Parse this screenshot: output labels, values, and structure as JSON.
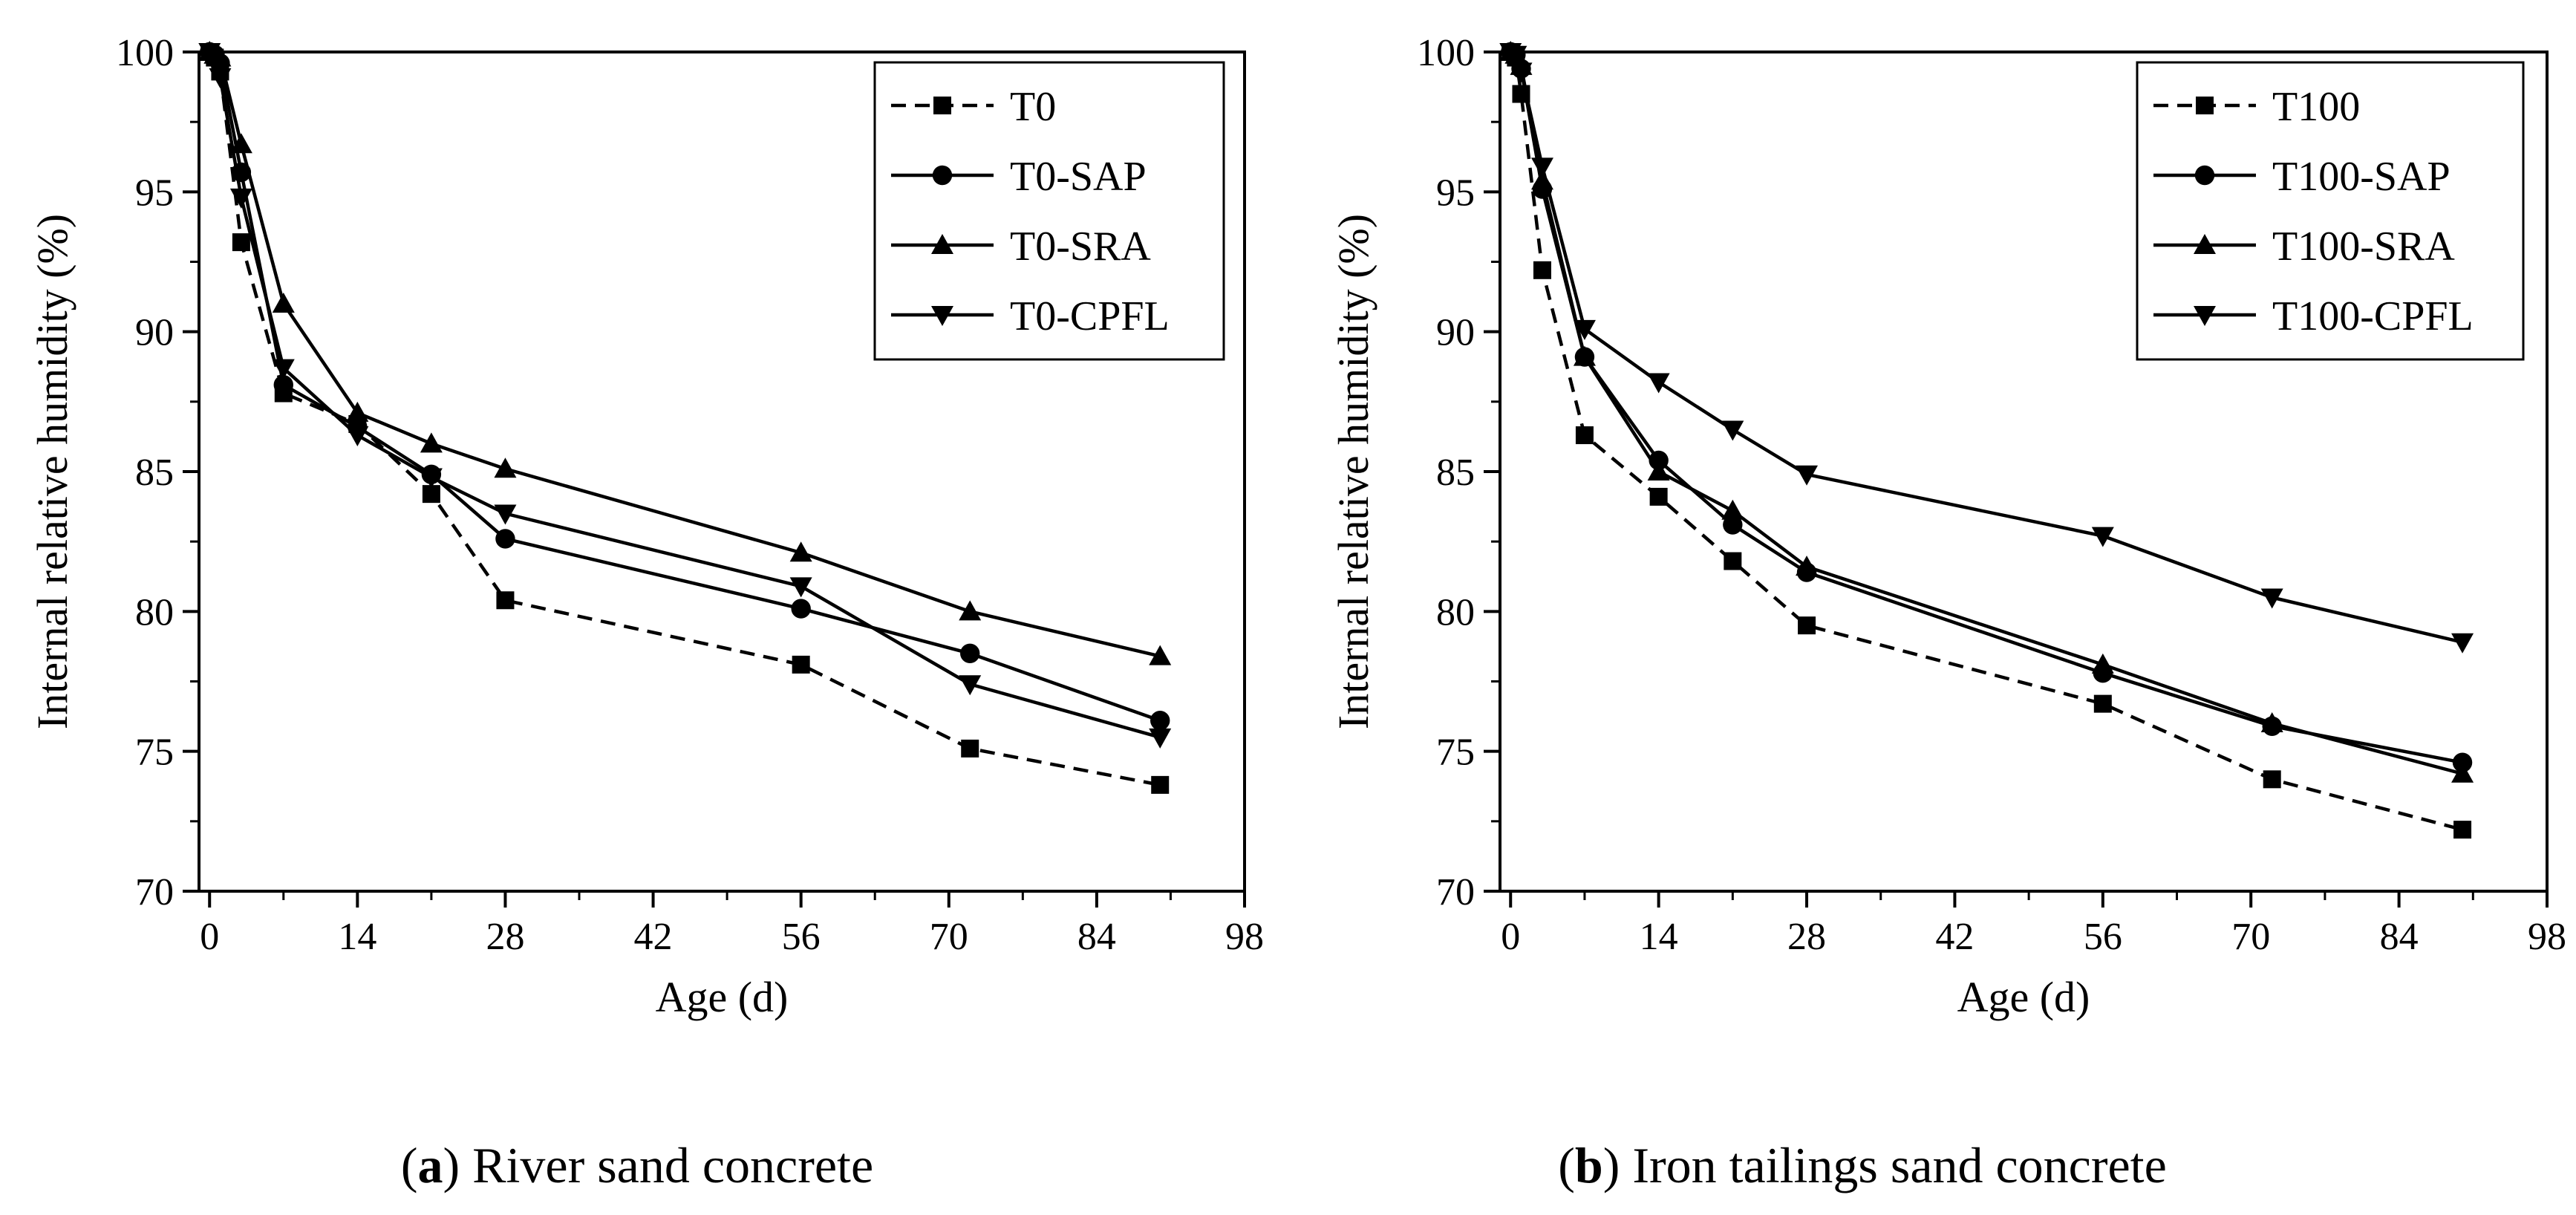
{
  "figure": {
    "captions": [
      {
        "prefix": "(",
        "letter": "a",
        "suffix": ") River sand concrete"
      },
      {
        "prefix": "(",
        "letter": "b",
        "suffix": ") Iron tailings sand concrete"
      }
    ]
  },
  "chart_data": [
    {
      "type": "line",
      "title": "",
      "xlabel": "Age (d)",
      "ylabel": "Internal relative humidity (%)",
      "xlim": [
        -1,
        98
      ],
      "ylim": [
        70,
        100
      ],
      "xticks": [
        0,
        14,
        28,
        42,
        56,
        70,
        84,
        98
      ],
      "yticks": [
        70,
        75,
        80,
        85,
        90,
        95,
        100
      ],
      "grid": false,
      "legend_position": "top-right",
      "series": [
        {
          "name": "T0",
          "marker": "square",
          "dashed": true,
          "x": [
            0,
            0.5,
            1,
            3,
            7,
            14,
            21,
            28,
            56,
            72,
            90
          ],
          "y": [
            100,
            99.8,
            99.3,
            93.2,
            87.8,
            86.7,
            84.2,
            80.4,
            78.1,
            75.1,
            73.8
          ]
        },
        {
          "name": "T0-SAP",
          "marker": "circle",
          "dashed": false,
          "x": [
            0,
            0.5,
            1,
            3,
            7,
            14,
            21,
            28,
            56,
            72,
            90
          ],
          "y": [
            100,
            99.9,
            99.6,
            95.7,
            88.1,
            86.6,
            84.9,
            82.6,
            80.1,
            78.5,
            76.1
          ]
        },
        {
          "name": "T0-SRA",
          "marker": "triangle-up",
          "dashed": false,
          "x": [
            0,
            0.5,
            1,
            3,
            7,
            14,
            21,
            28,
            56,
            72,
            90
          ],
          "y": [
            100,
            99.9,
            99.8,
            96.7,
            91.0,
            87.1,
            86.0,
            85.1,
            82.1,
            80.0,
            78.4
          ]
        },
        {
          "name": "T0-CPFL",
          "marker": "triangle-down",
          "dashed": false,
          "x": [
            0,
            0.5,
            1,
            3,
            7,
            14,
            21,
            28,
            56,
            72,
            90
          ],
          "y": [
            100,
            99.7,
            99.1,
            94.8,
            88.7,
            86.3,
            84.8,
            83.5,
            80.9,
            77.4,
            75.5
          ]
        }
      ]
    },
    {
      "type": "line",
      "title": "",
      "xlabel": "Age (d)",
      "ylabel": "Internal relative humidity (%)",
      "xlim": [
        -1,
        98
      ],
      "ylim": [
        70,
        100
      ],
      "xticks": [
        0,
        14,
        28,
        42,
        56,
        70,
        84,
        98
      ],
      "yticks": [
        70,
        75,
        80,
        85,
        90,
        95,
        100
      ],
      "grid": false,
      "legend_position": "top-right",
      "series": [
        {
          "name": "T100",
          "marker": "square",
          "dashed": true,
          "x": [
            0,
            0.5,
            1,
            3,
            7,
            14,
            21,
            28,
            56,
            72,
            90
          ],
          "y": [
            100,
            99.8,
            98.5,
            92.2,
            86.3,
            84.1,
            81.8,
            79.5,
            76.7,
            74.0,
            72.2
          ]
        },
        {
          "name": "T100-SAP",
          "marker": "circle",
          "dashed": false,
          "x": [
            0,
            0.5,
            1,
            3,
            7,
            14,
            21,
            28,
            56,
            72,
            90
          ],
          "y": [
            100,
            99.9,
            99.4,
            95.1,
            89.1,
            85.4,
            83.1,
            81.4,
            77.8,
            75.9,
            74.6
          ]
        },
        {
          "name": "T100-SRA",
          "marker": "triangle-up",
          "dashed": false,
          "x": [
            0,
            0.5,
            1,
            3,
            7,
            14,
            21,
            28,
            56,
            72,
            90
          ],
          "y": [
            100,
            99.9,
            99.5,
            95.4,
            89.1,
            85.0,
            83.6,
            81.6,
            78.1,
            76.0,
            74.2
          ]
        },
        {
          "name": "T100-CPFL",
          "marker": "triangle-down",
          "dashed": false,
          "x": [
            0,
            0.5,
            1,
            3,
            7,
            14,
            21,
            28,
            56,
            72,
            90
          ],
          "y": [
            100,
            99.9,
            99.3,
            95.9,
            90.1,
            88.2,
            86.5,
            84.9,
            82.7,
            80.5,
            78.9
          ]
        }
      ]
    }
  ]
}
